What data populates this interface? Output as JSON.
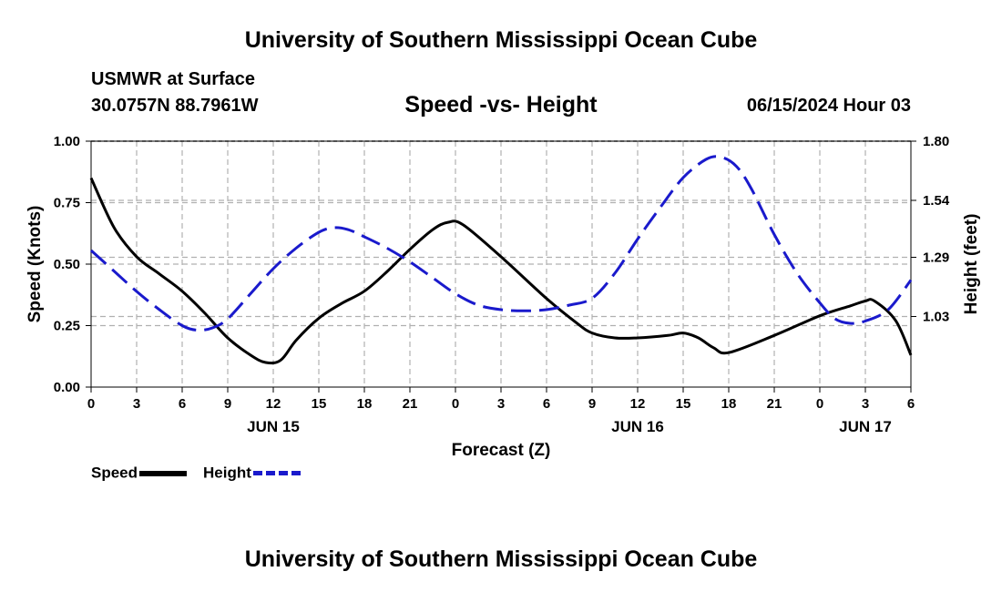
{
  "header": {
    "title": "University of Southern Mississippi Ocean Cube",
    "station": "USMWR at Surface",
    "coords": "30.0757N  88.7961W",
    "subtitle": "Speed -vs- Height",
    "datetime": "06/15/2024 Hour 03"
  },
  "footer": {
    "title": "University of Southern Mississippi Ocean Cube"
  },
  "legend": {
    "speed_label": "Speed",
    "height_label": "Height"
  },
  "colors": {
    "speed": "#000000",
    "height": "#1a1acc",
    "grid": "#b0b0b0"
  },
  "chart_data": {
    "type": "line",
    "title": "Speed -vs- Height",
    "xlabel": "Forecast (Z)",
    "ylabel": "Speed (Knots)",
    "y2label": "Height (feet)",
    "xlim": [
      0,
      54
    ],
    "ylim": [
      0,
      1.0
    ],
    "y2lim": [
      0.72,
      1.8
    ],
    "x_ticks": [
      {
        "x": 0,
        "label": "0"
      },
      {
        "x": 3,
        "label": "3"
      },
      {
        "x": 6,
        "label": "6"
      },
      {
        "x": 9,
        "label": "9"
      },
      {
        "x": 12,
        "label": "12"
      },
      {
        "x": 15,
        "label": "15"
      },
      {
        "x": 18,
        "label": "18"
      },
      {
        "x": 21,
        "label": "21"
      },
      {
        "x": 24,
        "label": "0"
      },
      {
        "x": 27,
        "label": "3"
      },
      {
        "x": 30,
        "label": "6"
      },
      {
        "x": 33,
        "label": "9"
      },
      {
        "x": 36,
        "label": "12"
      },
      {
        "x": 39,
        "label": "15"
      },
      {
        "x": 42,
        "label": "18"
      },
      {
        "x": 45,
        "label": "21"
      },
      {
        "x": 48,
        "label": "0"
      },
      {
        "x": 51,
        "label": "3"
      },
      {
        "x": 54,
        "label": "6"
      }
    ],
    "date_labels": [
      {
        "x": 12,
        "label": "JUN 15"
      },
      {
        "x": 36,
        "label": "JUN 16"
      },
      {
        "x": 51,
        "label": "JUN 17"
      }
    ],
    "y_ticks": [
      0.0,
      0.25,
      0.5,
      0.75,
      1.0
    ],
    "y_tick_labels": [
      "0.00",
      "0.25",
      "0.50",
      "0.75",
      "1.00"
    ],
    "y2_ticks": [
      1.03,
      1.29,
      1.54,
      1.8
    ],
    "y2_tick_labels": [
      "1.03",
      "1.29",
      "1.54",
      "1.80"
    ],
    "series": [
      {
        "name": "Speed",
        "axis": "left",
        "style": "solid",
        "x": [
          0,
          1.5,
          3,
          4.5,
          6,
          7.5,
          9,
          10.5,
          11.5,
          12.5,
          13.5,
          15,
          16.5,
          18,
          19.5,
          21,
          22.5,
          23.5,
          24.5,
          27,
          30,
          32,
          33,
          34.5,
          36,
          38,
          39,
          40,
          41,
          42,
          45,
          48,
          50,
          51,
          51.6,
          53,
          54
        ],
        "values": [
          0.85,
          0.65,
          0.53,
          0.46,
          0.39,
          0.3,
          0.2,
          0.13,
          0.1,
          0.11,
          0.19,
          0.28,
          0.34,
          0.39,
          0.47,
          0.56,
          0.64,
          0.67,
          0.66,
          0.53,
          0.36,
          0.26,
          0.22,
          0.2,
          0.2,
          0.21,
          0.22,
          0.2,
          0.16,
          0.14,
          0.21,
          0.29,
          0.33,
          0.35,
          0.35,
          0.27,
          0.13
        ]
      },
      {
        "name": "Height",
        "axis": "right",
        "style": "dashed",
        "x": [
          0,
          1.5,
          3,
          4.5,
          6,
          7,
          8,
          9,
          10.5,
          12,
          13.5,
          15,
          16,
          17,
          18,
          19.5,
          21,
          22.5,
          24,
          25.5,
          27,
          28.5,
          30,
          31.5,
          33,
          34.5,
          36,
          37.5,
          39,
          40.5,
          41.5,
          42.5,
          43.5,
          45,
          46.5,
          48,
          49,
          50,
          51,
          52.5,
          54
        ],
        "values": [
          1.32,
          1.23,
          1.14,
          1.06,
          0.99,
          0.97,
          0.98,
          1.02,
          1.13,
          1.24,
          1.33,
          1.4,
          1.42,
          1.41,
          1.38,
          1.33,
          1.27,
          1.2,
          1.13,
          1.08,
          1.06,
          1.055,
          1.06,
          1.08,
          1.11,
          1.22,
          1.37,
          1.51,
          1.64,
          1.72,
          1.73,
          1.69,
          1.59,
          1.39,
          1.22,
          1.09,
          1.02,
          1.0,
          1.01,
          1.06,
          1.19
        ]
      }
    ]
  }
}
